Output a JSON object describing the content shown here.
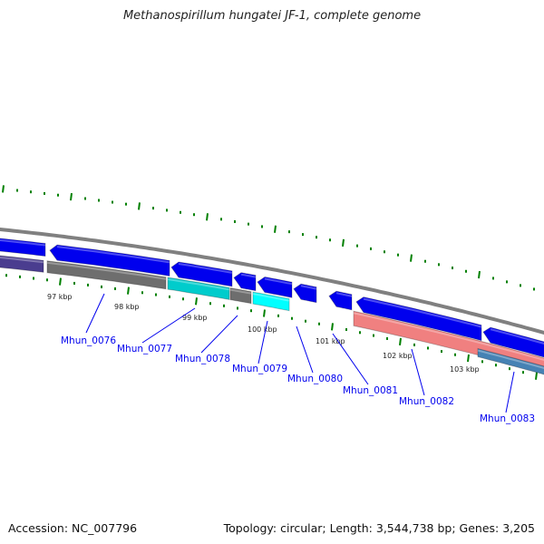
{
  "title": "Methanospirillum hungatei JF-1, complete genome",
  "footer": {
    "accession": "Accession: NC_007796",
    "topology": "Topology: circular; Length: 3,544,738 bp; Genes: 3,205"
  },
  "kbp_labels": [
    "97 kbp",
    "98 kbp",
    "99 kbp",
    "100 kbp",
    "101 kbp",
    "102 kbp",
    "103 kbp"
  ],
  "gene_labels": [
    "Mhun_0076",
    "Mhun_0077",
    "Mhun_0078",
    "Mhun_0079",
    "Mhun_0080",
    "Mhun_0081",
    "Mhun_0082",
    "Mhun_0083"
  ],
  "colors": {
    "backbone": "#808080",
    "cds": "#0000ee",
    "gray_feature": "#6e6e6e",
    "cyan_feature": "#00cccc",
    "bright_cyan": "#00ffff",
    "purple_feature": "#4a3d8f",
    "salmon_feature": "#f08080",
    "steelblue_feature": "#4682b4",
    "tick": "#008000",
    "label": "#0000ee"
  }
}
